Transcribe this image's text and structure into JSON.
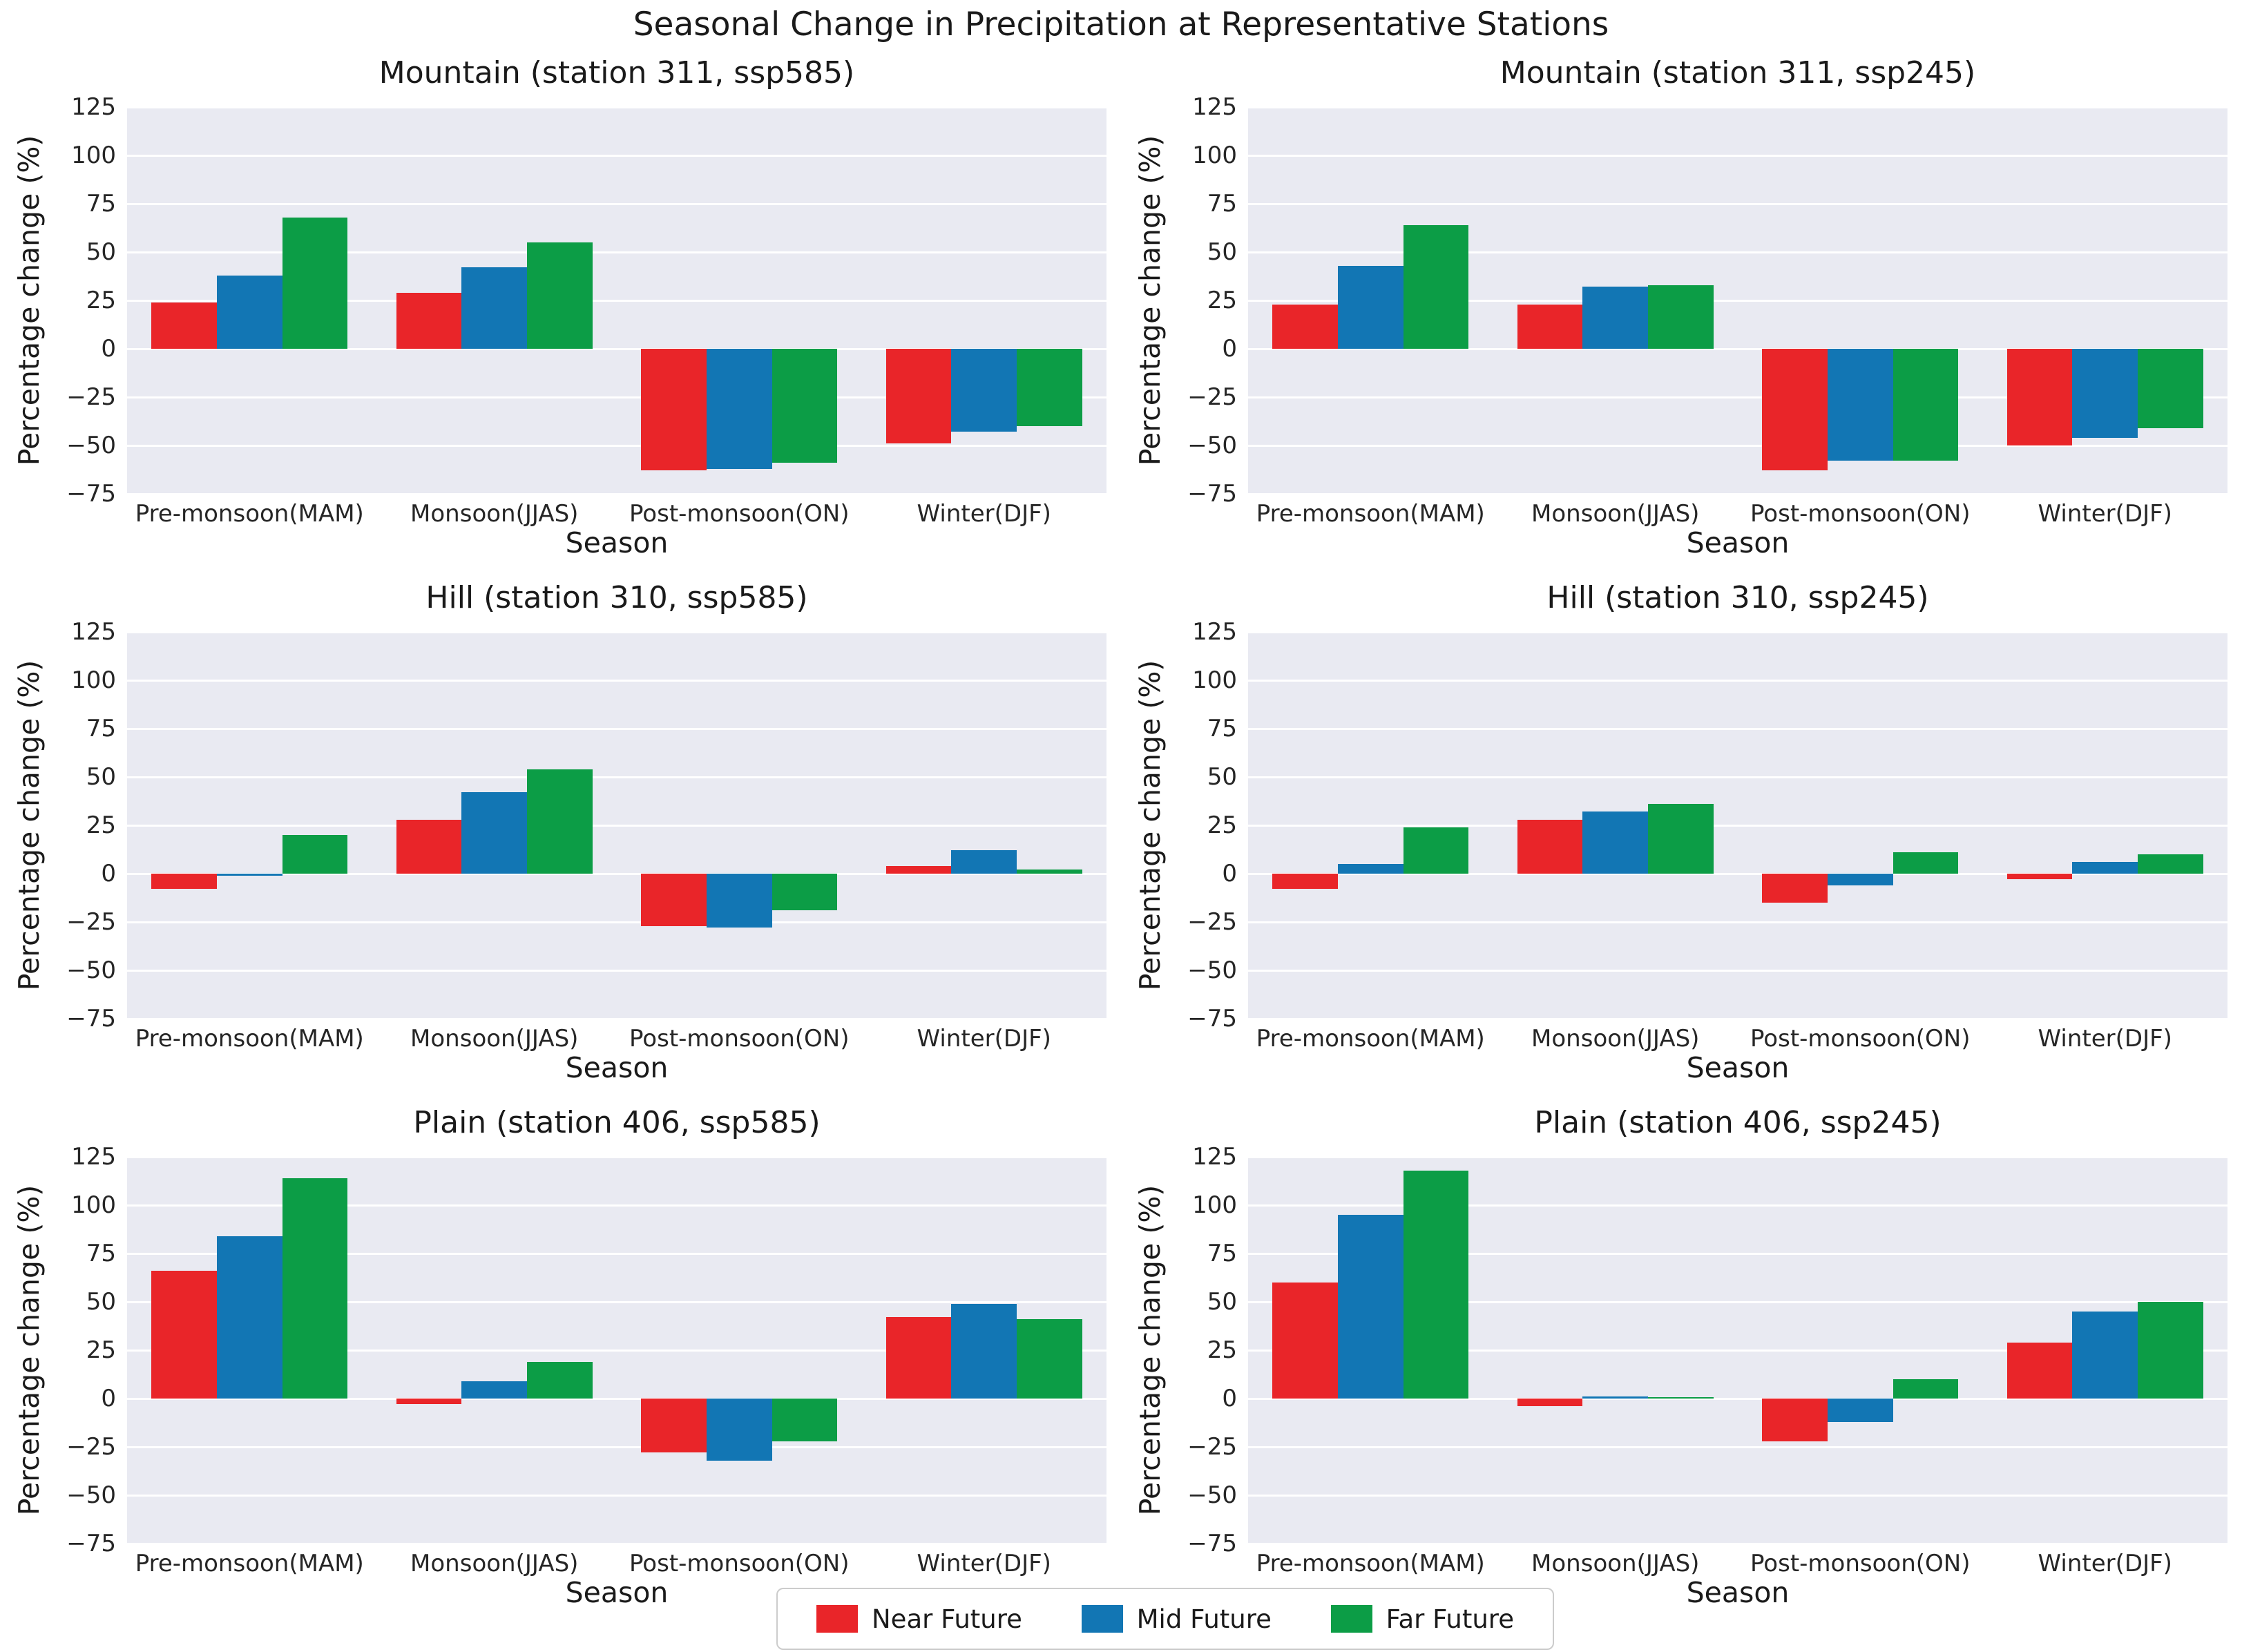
{
  "figure": {
    "title": "Seasonal Change in Precipitation at Representative Stations"
  },
  "style": {
    "plot_background": "#e9eaf2",
    "gridline_color": "#ffffff",
    "text_color": "#1a1a1a",
    "tick_color": "#262626",
    "legend_border": "#cccccc"
  },
  "colors": {
    "Near Future": "#e92529",
    "Mid Future": "#1276b4",
    "Far Future": "#0c9d46"
  },
  "legend": {
    "entries": [
      {
        "label": "Near Future",
        "color": "#e92529"
      },
      {
        "label": "Mid Future",
        "color": "#1276b4"
      },
      {
        "label": "Far Future",
        "color": "#0c9d46"
      }
    ],
    "position": "bottom-center"
  },
  "chart_data": [
    {
      "type": "bar",
      "title": "Mountain (station 311, ssp585)",
      "xlabel": "Season",
      "ylabel": "Percentage change (%)",
      "ylim": [
        -75,
        125
      ],
      "yticks": [
        125,
        100,
        75,
        50,
        25,
        0,
        -25,
        -50,
        -75
      ],
      "grid": true,
      "categories": [
        "Pre-monsoon(MAM)",
        "Monsoon(JJAS)",
        "Post-monsoon(ON)",
        "Winter(DJF)"
      ],
      "series": [
        {
          "name": "Near Future",
          "values": [
            24,
            29,
            -63,
            -49
          ]
        },
        {
          "name": "Mid Future",
          "values": [
            38,
            42,
            -62,
            -43
          ]
        },
        {
          "name": "Far Future",
          "values": [
            68,
            55,
            -59,
            -40
          ]
        }
      ]
    },
    {
      "type": "bar",
      "title": "Mountain (station 311, ssp245)",
      "xlabel": "Season",
      "ylabel": "Percentage change (%)",
      "ylim": [
        -75,
        125
      ],
      "yticks": [
        125,
        100,
        75,
        50,
        25,
        0,
        -25,
        -50,
        -75
      ],
      "grid": true,
      "categories": [
        "Pre-monsoon(MAM)",
        "Monsoon(JJAS)",
        "Post-monsoon(ON)",
        "Winter(DJF)"
      ],
      "series": [
        {
          "name": "Near Future",
          "values": [
            23,
            23,
            -63,
            -50
          ]
        },
        {
          "name": "Mid Future",
          "values": [
            43,
            32,
            -58,
            -46
          ]
        },
        {
          "name": "Far Future",
          "values": [
            64,
            33,
            -58,
            -41
          ]
        }
      ]
    },
    {
      "type": "bar",
      "title": "Hill (station 310, ssp585)",
      "xlabel": "Season",
      "ylabel": "Percentage change (%)",
      "ylim": [
        -75,
        125
      ],
      "yticks": [
        125,
        100,
        75,
        50,
        25,
        0,
        -25,
        -50,
        -75
      ],
      "grid": true,
      "categories": [
        "Pre-monsoon(MAM)",
        "Monsoon(JJAS)",
        "Post-monsoon(ON)",
        "Winter(DJF)"
      ],
      "series": [
        {
          "name": "Near Future",
          "values": [
            -8,
            28,
            -27,
            4
          ]
        },
        {
          "name": "Mid Future",
          "values": [
            -1,
            42,
            -28,
            12
          ]
        },
        {
          "name": "Far Future",
          "values": [
            20,
            54,
            -19,
            2
          ]
        }
      ]
    },
    {
      "type": "bar",
      "title": "Hill (station 310, ssp245)",
      "xlabel": "Season",
      "ylabel": "Percentage change (%)",
      "ylim": [
        -75,
        125
      ],
      "yticks": [
        125,
        100,
        75,
        50,
        25,
        0,
        -25,
        -50,
        -75
      ],
      "grid": true,
      "categories": [
        "Pre-monsoon(MAM)",
        "Monsoon(JJAS)",
        "Post-monsoon(ON)",
        "Winter(DJF)"
      ],
      "series": [
        {
          "name": "Near Future",
          "values": [
            -8,
            28,
            -15,
            -3
          ]
        },
        {
          "name": "Mid Future",
          "values": [
            5,
            32,
            -6,
            6
          ]
        },
        {
          "name": "Far Future",
          "values": [
            24,
            36,
            11,
            10
          ]
        }
      ]
    },
    {
      "type": "bar",
      "title": "Plain (station 406, ssp585)",
      "xlabel": "Season",
      "ylabel": "Percentage change (%)",
      "ylim": [
        -75,
        125
      ],
      "yticks": [
        125,
        100,
        75,
        50,
        25,
        0,
        -25,
        -50,
        -75
      ],
      "grid": true,
      "categories": [
        "Pre-monsoon(MAM)",
        "Monsoon(JJAS)",
        "Post-monsoon(ON)",
        "Winter(DJF)"
      ],
      "series": [
        {
          "name": "Near Future",
          "values": [
            66,
            -3,
            -28,
            42
          ]
        },
        {
          "name": "Mid Future",
          "values": [
            84,
            9,
            -32,
            49
          ]
        },
        {
          "name": "Far Future",
          "values": [
            114,
            19,
            -22,
            41
          ]
        }
      ]
    },
    {
      "type": "bar",
      "title": "Plain (station 406, ssp245)",
      "xlabel": "Season",
      "ylabel": "Percentage change (%)",
      "ylim": [
        -75,
        125
      ],
      "yticks": [
        125,
        100,
        75,
        50,
        25,
        0,
        -25,
        -50,
        -75
      ],
      "grid": true,
      "categories": [
        "Pre-monsoon(MAM)",
        "Monsoon(JJAS)",
        "Post-monsoon(ON)",
        "Winter(DJF)"
      ],
      "series": [
        {
          "name": "Near Future",
          "values": [
            60,
            -4,
            -22,
            29
          ]
        },
        {
          "name": "Mid Future",
          "values": [
            95,
            1,
            -12,
            45
          ]
        },
        {
          "name": "Far Future",
          "values": [
            118,
            0.5,
            10,
            50
          ]
        }
      ]
    }
  ]
}
